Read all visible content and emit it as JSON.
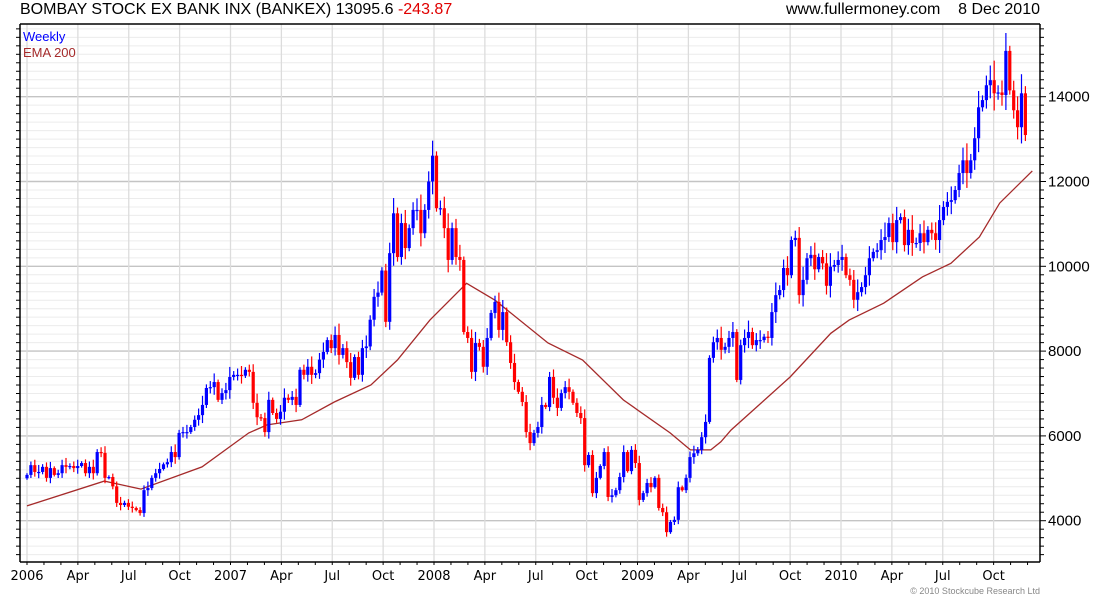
{
  "header": {
    "title": "BOMBAY STOCK EX BANK INX (BANKEX)",
    "last": "13095.6",
    "change": "-243.87",
    "site": "www.fullermoney.com",
    "date": "8 Dec 2010"
  },
  "legend": {
    "weekly": "Weekly",
    "ema": "EMA 200"
  },
  "copyright": "© 2010 Stockcube Research Ltd",
  "colors": {
    "up": "#0000ff",
    "down": "#ff0000",
    "ema": "#a52a2a"
  },
  "chart_data": {
    "type": "candlestick",
    "title": "BOMBAY STOCK EX BANK INX (BANKEX) 13095.6 -243.87",
    "interval": "weekly",
    "start_year": 2006.0,
    "weeks_per_year": 52.18,
    "ylim": [
      3000,
      15700
    ],
    "y_ticks": [
      4000,
      6000,
      8000,
      10000,
      12000,
      14000
    ],
    "y_tick_labels": [
      "4000",
      "6000",
      "8000",
      "10000",
      "12000",
      "14000"
    ],
    "x_ticks": [
      {
        "t": 2006.0,
        "label": "2006"
      },
      {
        "t": 2006.25,
        "label": "Apr"
      },
      {
        "t": 2006.5,
        "label": "Jul"
      },
      {
        "t": 2006.75,
        "label": "Oct"
      },
      {
        "t": 2007.0,
        "label": "2007"
      },
      {
        "t": 2007.25,
        "label": "Apr"
      },
      {
        "t": 2007.5,
        "label": "Jul"
      },
      {
        "t": 2007.75,
        "label": "Oct"
      },
      {
        "t": 2008.0,
        "label": "2008"
      },
      {
        "t": 2008.25,
        "label": "Apr"
      },
      {
        "t": 2008.5,
        "label": "Jul"
      },
      {
        "t": 2008.75,
        "label": "Oct"
      },
      {
        "t": 2009.0,
        "label": "2009"
      },
      {
        "t": 2009.25,
        "label": "Apr"
      },
      {
        "t": 2009.5,
        "label": "Jul"
      },
      {
        "t": 2009.75,
        "label": "Oct"
      },
      {
        "t": 2010.0,
        "label": "2010"
      },
      {
        "t": 2010.25,
        "label": "Apr"
      },
      {
        "t": 2010.5,
        "label": "Jul"
      },
      {
        "t": 2010.75,
        "label": "Oct"
      }
    ],
    "weekly_close": [
      5080,
      5310,
      5150,
      5150,
      5270,
      5010,
      5240,
      5080,
      5120,
      5310,
      5270,
      5290,
      5240,
      5290,
      5360,
      5120,
      5270,
      5120,
      5620,
      5600,
      5010,
      5030,
      4810,
      4420,
      4370,
      4420,
      4330,
      4300,
      4250,
      4180,
      4720,
      4770,
      5010,
      5120,
      5220,
      5330,
      5380,
      5620,
      5500,
      6070,
      6090,
      6090,
      6210,
      6380,
      6490,
      6730,
      7130,
      7150,
      7270,
      6850,
      7010,
      7080,
      7390,
      7440,
      7440,
      7420,
      7560,
      7510,
      6780,
      6440,
      6420,
      6090,
      6850,
      6540,
      6400,
      6570,
      6900,
      6850,
      6920,
      6730,
      7560,
      7440,
      7630,
      7440,
      7480,
      7800,
      7980,
      8260,
      8070,
      8380,
      7910,
      8070,
      7740,
      7370,
      7860,
      7440,
      8070,
      8110,
      8740,
      9280,
      9380,
      9900,
      8690,
      10310,
      11250,
      10220,
      11020,
      10430,
      10900,
      11330,
      11330,
      10780,
      11330,
      12000,
      12610,
      11370,
      11370,
      10900,
      10150,
      10900,
      10220,
      10150,
      8450,
      8310,
      7510,
      8190,
      8100,
      7630,
      8310,
      8900,
      9160,
      8500,
      8920,
      8210,
      7720,
      7270,
      7040,
      6800,
      6090,
      5830,
      6070,
      6210,
      6730,
      6680,
      7390,
      6900,
      6660,
      7010,
      7150,
      7040,
      6780,
      6540,
      6420,
      5310,
      5550,
      4650,
      5010,
      5290,
      5620,
      4560,
      4600,
      4720,
      5030,
      5620,
      5170,
      5670,
      5360,
      4490,
      4650,
      4890,
      4790,
      5010,
      4300,
      4200,
      3730,
      3970,
      4020,
      4790,
      4720,
      5010,
      5500,
      5590,
      5670,
      5970,
      6330,
      7840,
      8210,
      8310,
      8030,
      8100,
      8310,
      8450,
      7320,
      8140,
      8310,
      8450,
      8140,
      8260,
      8260,
      8340,
      8310,
      8920,
      9320,
      9440,
      9960,
      9790,
      10620,
      10670,
      9320,
      9680,
      10190,
      10270,
      9930,
      10220,
      10070,
      9540,
      9990,
      10030,
      10150,
      10220,
      9790,
      9680,
      9210,
      9390,
      9510,
      9790,
      10190,
      10340,
      10380,
      10620,
      10690,
      11020,
      10570,
      11090,
      11160,
      10500,
      10860,
      10550,
      10550,
      10780,
      10570,
      10860,
      10780,
      10620,
      11090,
      11400,
      11520,
      11560,
      11800,
      12200,
      12500,
      12200,
      12500,
      13020,
      13750,
      13920,
      14270,
      14390,
      14080,
      14100,
      14040,
      15080,
      14150,
      13680,
      13280,
      14080,
      13096
    ],
    "first_open": 5000,
    "wick_pct": 0.02,
    "series": [
      {
        "name": "EMA 200",
        "type": "line",
        "points": [
          [
            2006.0,
            4350
          ],
          [
            2006.38,
            4935
          ],
          [
            2006.56,
            4745
          ],
          [
            2006.86,
            5270
          ],
          [
            2007.09,
            6070
          ],
          [
            2007.18,
            6260
          ],
          [
            2007.35,
            6380
          ],
          [
            2007.51,
            6800
          ],
          [
            2007.69,
            7200
          ],
          [
            2007.82,
            7790
          ],
          [
            2007.98,
            8730
          ],
          [
            2008.16,
            9600
          ],
          [
            2008.3,
            9200
          ],
          [
            2008.56,
            8190
          ],
          [
            2008.73,
            7790
          ],
          [
            2008.93,
            6850
          ],
          [
            2009.16,
            6070
          ],
          [
            2009.26,
            5670
          ],
          [
            2009.36,
            5670
          ],
          [
            2009.41,
            5860
          ],
          [
            2009.46,
            6140
          ],
          [
            2009.75,
            7390
          ],
          [
            2009.95,
            8420
          ],
          [
            2010.04,
            8730
          ],
          [
            2010.21,
            9130
          ],
          [
            2010.4,
            9750
          ],
          [
            2010.54,
            10070
          ],
          [
            2010.68,
            10690
          ],
          [
            2010.78,
            11490
          ],
          [
            2010.94,
            12250
          ]
        ]
      }
    ],
    "grid": true
  }
}
